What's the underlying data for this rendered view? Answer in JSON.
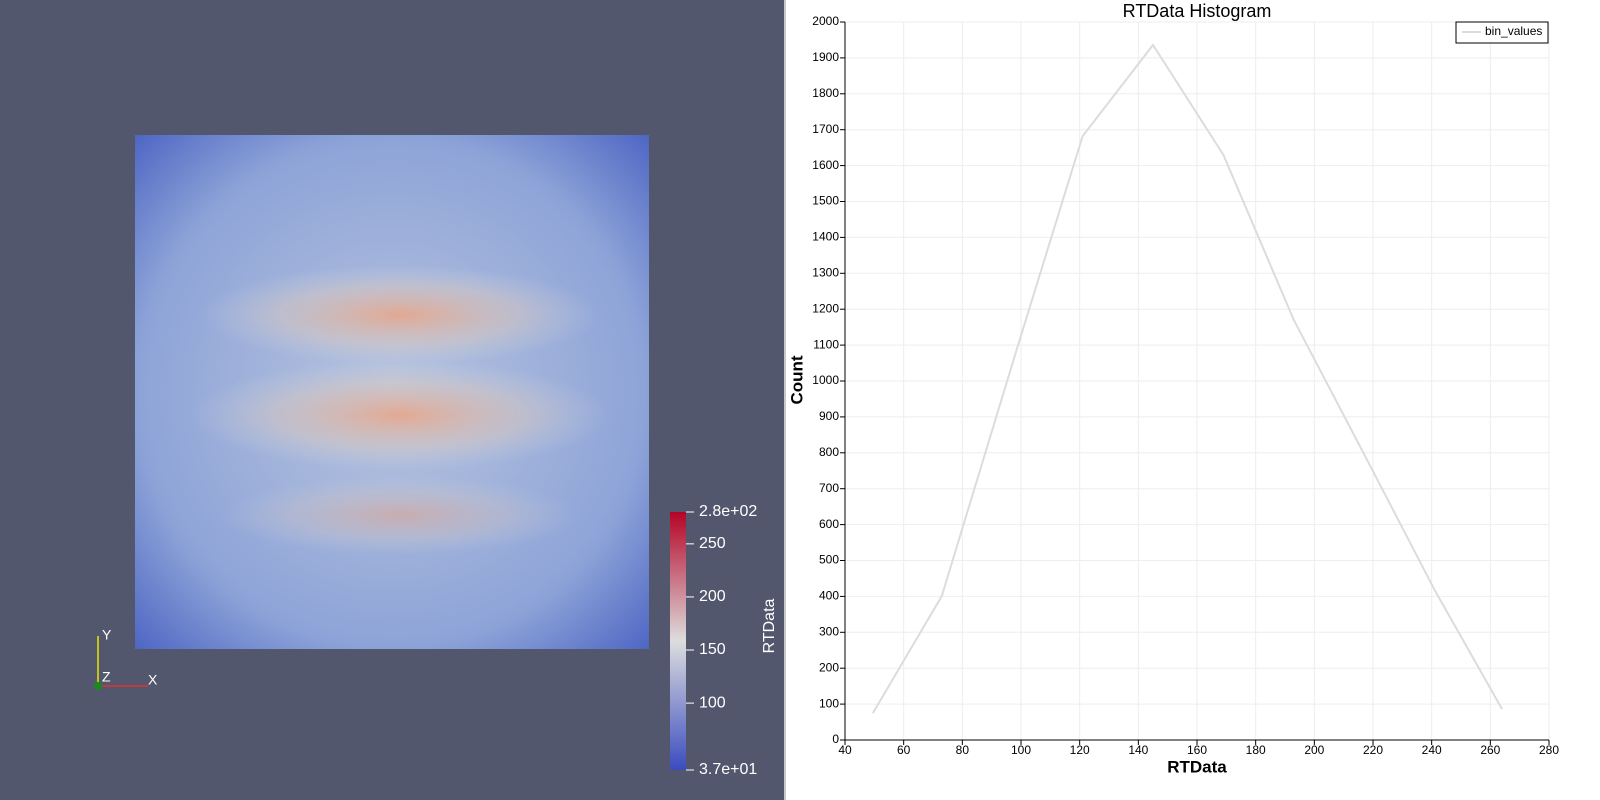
{
  "render_view": {
    "color_legend": {
      "title": "RTData",
      "range": [
        {
          "value": 280,
          "label": "2.8e+02"
        },
        {
          "value": 37,
          "label": "3.7e+01"
        }
      ],
      "ticks": [
        250,
        200,
        150,
        100
      ]
    },
    "orientation_axes": [
      "X",
      "Y",
      "Z"
    ]
  },
  "chart_data": {
    "type": "line",
    "title": "RTData Histogram",
    "x_label": "RTData",
    "y_label": "Count",
    "x": [
      49.5,
      73,
      99,
      121,
      145,
      169,
      193,
      218,
      241,
      264
    ],
    "series": [
      {
        "name": "bin_values",
        "color": "#dcdcdc",
        "values": [
          75,
          401,
          1100,
          1682,
          1936,
          1630,
          1170,
          780,
          418,
          86
        ]
      }
    ],
    "xlim": [
      40,
      280
    ],
    "xticks": [
      40,
      60,
      80,
      100,
      120,
      140,
      160,
      180,
      200,
      220,
      240,
      260,
      280
    ],
    "ylim": [
      0,
      2000
    ],
    "yticks": [
      0,
      100,
      200,
      300,
      400,
      500,
      600,
      700,
      800,
      900,
      1000,
      1100,
      1200,
      1300,
      1400,
      1500,
      1600,
      1700,
      1800,
      1900,
      2000
    ],
    "grid": true,
    "legend": "top-right"
  }
}
